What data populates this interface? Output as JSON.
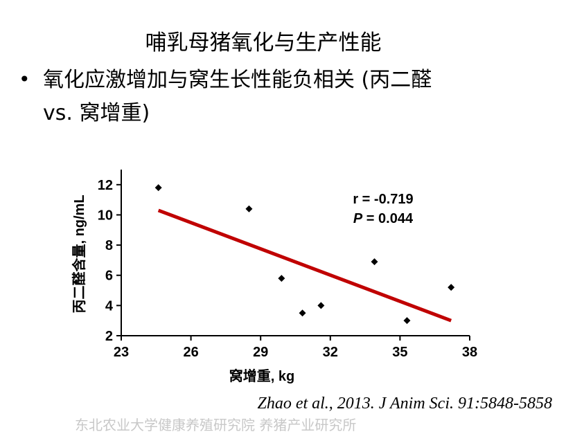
{
  "slide": {
    "title": "哺乳母猪氧化与生产性能",
    "bullet_symbol": "•",
    "bullet_line1": "氧化应激增加与窝生长性能负相关 (丙二醛",
    "bullet_line2": "vs. 窝增重)",
    "citation": "Zhao et al., 2013. J Anim Sci. 91:5848-5858",
    "footer": "东北农业大学健康养殖研究院 养猪产业研究所"
  },
  "chart_data": {
    "type": "scatter",
    "xlabel": "窝增重, kg",
    "ylabel": "丙二醛含量, ng/mL",
    "xlim": [
      23,
      38
    ],
    "ylim": [
      2,
      13
    ],
    "xticks": [
      23,
      26,
      29,
      32,
      35,
      38
    ],
    "yticks": [
      2,
      4,
      6,
      8,
      10,
      12
    ],
    "points": [
      {
        "x": 24.6,
        "y": 11.8
      },
      {
        "x": 28.5,
        "y": 10.4
      },
      {
        "x": 29.9,
        "y": 5.8
      },
      {
        "x": 30.8,
        "y": 3.5
      },
      {
        "x": 31.6,
        "y": 4.0
      },
      {
        "x": 33.9,
        "y": 6.9
      },
      {
        "x": 35.3,
        "y": 3.0
      },
      {
        "x": 37.2,
        "y": 5.2
      }
    ],
    "trendline": {
      "x": [
        24.6,
        37.2
      ],
      "y": [
        10.3,
        3.0
      ],
      "color": "#c00000"
    },
    "annotation_r": "r = -0.719",
    "annotation_p_label": "P",
    "annotation_p_value": " = 0.044",
    "grid": false
  }
}
